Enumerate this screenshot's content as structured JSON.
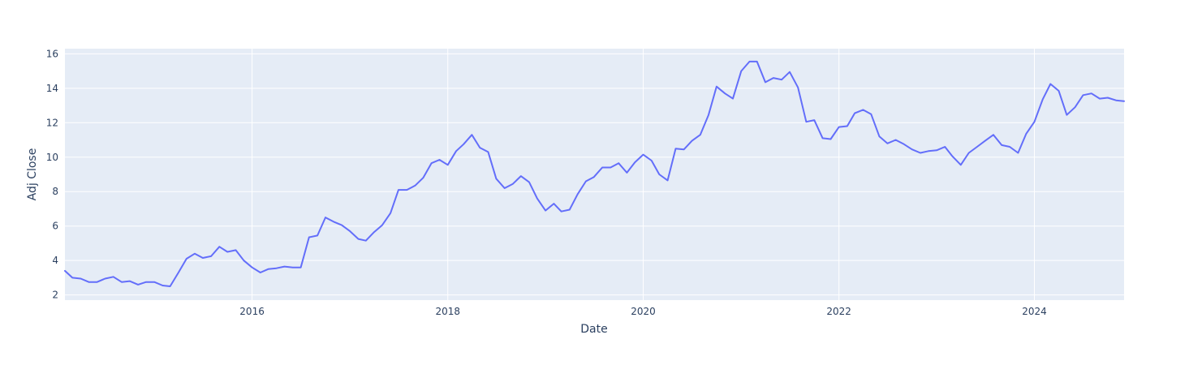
{
  "chart_data": {
    "type": "line",
    "title": "",
    "xlabel": "Date",
    "ylabel": "Adj Close",
    "grid": true,
    "legend": "none",
    "colors": {
      "plot_background": "#e5ecf6",
      "grid": "#ffffff",
      "line": "#636efa",
      "text": "#2a3f5f"
    },
    "xlim": [
      "2014-02-01",
      "2024-12-01"
    ],
    "ylim": [
      1.7,
      16.3
    ],
    "x_ticks": [
      {
        "value": "2016-01-01",
        "label": "2016"
      },
      {
        "value": "2018-01-01",
        "label": "2018"
      },
      {
        "value": "2020-01-01",
        "label": "2020"
      },
      {
        "value": "2022-01-01",
        "label": "2022"
      },
      {
        "value": "2024-01-01",
        "label": "2024"
      }
    ],
    "y_ticks": [
      {
        "value": 2,
        "label": "2"
      },
      {
        "value": 4,
        "label": "4"
      },
      {
        "value": 6,
        "label": "6"
      },
      {
        "value": 8,
        "label": "8"
      },
      {
        "value": 10,
        "label": "10"
      },
      {
        "value": 12,
        "label": "12"
      },
      {
        "value": 14,
        "label": "14"
      },
      {
        "value": 16,
        "label": "16"
      }
    ],
    "series": [
      {
        "x": [
          "2014-02-01",
          "2014-03-01",
          "2014-04-01",
          "2014-05-01",
          "2014-06-01",
          "2014-07-01",
          "2014-08-01",
          "2014-09-01",
          "2014-10-01",
          "2014-11-01",
          "2014-12-01",
          "2015-01-01",
          "2015-02-01",
          "2015-03-01",
          "2015-04-01",
          "2015-05-01",
          "2015-06-01",
          "2015-07-01",
          "2015-08-01",
          "2015-09-01",
          "2015-10-01",
          "2015-11-01",
          "2015-12-01",
          "2016-01-01",
          "2016-02-01",
          "2016-03-01",
          "2016-04-01",
          "2016-05-01",
          "2016-06-01",
          "2016-07-01",
          "2016-08-01",
          "2016-09-01",
          "2016-10-01",
          "2016-11-01",
          "2016-12-01",
          "2017-01-01",
          "2017-02-01",
          "2017-03-01",
          "2017-04-01",
          "2017-05-01",
          "2017-06-01",
          "2017-07-01",
          "2017-08-01",
          "2017-09-01",
          "2017-10-01",
          "2017-11-01",
          "2017-12-01",
          "2018-01-01",
          "2018-02-01",
          "2018-03-01",
          "2018-04-01",
          "2018-05-01",
          "2018-06-01",
          "2018-07-01",
          "2018-08-01",
          "2018-09-01",
          "2018-10-01",
          "2018-11-01",
          "2018-12-01",
          "2019-01-01",
          "2019-02-01",
          "2019-03-01",
          "2019-04-01",
          "2019-05-01",
          "2019-06-01",
          "2019-07-01",
          "2019-08-01",
          "2019-09-01",
          "2019-10-01",
          "2019-11-01",
          "2019-12-01",
          "2020-01-01",
          "2020-02-01",
          "2020-03-01",
          "2020-04-01",
          "2020-05-01",
          "2020-06-01",
          "2020-07-01",
          "2020-08-01",
          "2020-09-01",
          "2020-10-01",
          "2020-11-01",
          "2020-12-01",
          "2021-01-01",
          "2021-02-01",
          "2021-03-01",
          "2021-04-01",
          "2021-05-01",
          "2021-06-01",
          "2021-07-01",
          "2021-08-01",
          "2021-09-01",
          "2021-10-01",
          "2021-11-01",
          "2021-12-01",
          "2022-01-01",
          "2022-02-01",
          "2022-03-01",
          "2022-04-01",
          "2022-05-01",
          "2022-06-01",
          "2022-07-01",
          "2022-08-01",
          "2022-09-01",
          "2022-10-01",
          "2022-11-01",
          "2022-12-01",
          "2023-01-01",
          "2023-02-01",
          "2023-03-01",
          "2023-04-01",
          "2023-05-01",
          "2023-06-01",
          "2023-07-01",
          "2023-08-01",
          "2023-09-01",
          "2023-10-01",
          "2023-11-01",
          "2023-12-01",
          "2024-01-01",
          "2024-02-01",
          "2024-03-01",
          "2024-04-01",
          "2024-05-01",
          "2024-06-01",
          "2024-07-01",
          "2024-08-01",
          "2024-09-01",
          "2024-10-01",
          "2024-11-01",
          "2024-12-01"
        ],
        "y": [
          3.4,
          3.0,
          2.95,
          2.75,
          2.75,
          2.95,
          3.05,
          2.75,
          2.8,
          2.6,
          2.75,
          2.75,
          2.55,
          2.5,
          3.3,
          4.1,
          4.4,
          4.15,
          4.25,
          4.8,
          4.5,
          4.6,
          4.0,
          3.6,
          3.3,
          3.5,
          3.55,
          3.65,
          3.6,
          3.6,
          5.35,
          5.45,
          6.5,
          6.25,
          6.05,
          5.7,
          5.25,
          5.15,
          5.65,
          6.05,
          6.75,
          8.1,
          8.1,
          8.35,
          8.8,
          9.65,
          9.85,
          9.55,
          10.35,
          10.75,
          11.3,
          10.55,
          10.3,
          8.75,
          8.2,
          8.45,
          8.9,
          8.55,
          7.6,
          6.9,
          7.3,
          6.85,
          6.95,
          7.85,
          8.6,
          8.85,
          9.4,
          9.4,
          9.65,
          9.1,
          9.7,
          10.15,
          9.8,
          9.0,
          8.65,
          10.5,
          10.45,
          10.95,
          11.3,
          12.45,
          14.1,
          13.7,
          13.4,
          15.0,
          15.55,
          15.55,
          14.35,
          14.6,
          14.5,
          14.95,
          14.05,
          12.05,
          12.15,
          11.1,
          11.05,
          11.75,
          11.8,
          12.55,
          12.75,
          12.5,
          11.2,
          10.8,
          11.0,
          10.75,
          10.45,
          10.25,
          10.35,
          10.4,
          10.6,
          10.05,
          9.55,
          10.25,
          10.6,
          10.95,
          11.3,
          10.7,
          10.6,
          10.25,
          11.35,
          12.05,
          13.35,
          14.25,
          13.85,
          12.45,
          12.9,
          13.6,
          13.7,
          13.4,
          13.45,
          13.3,
          13.25
        ]
      }
    ]
  }
}
